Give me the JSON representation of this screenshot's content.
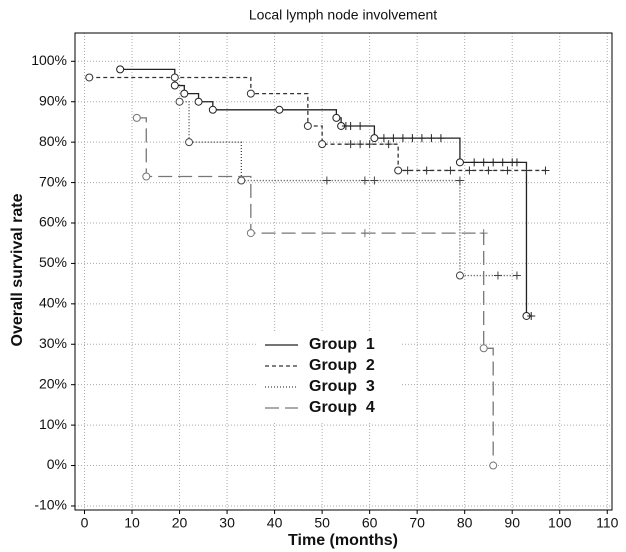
{
  "chart_data": {
    "type": "step",
    "title": "Local lymph node involvement",
    "x_label": "Time (months)",
    "y_label": "Overall survival rate",
    "xlim": [
      -2,
      111
    ],
    "ylim": [
      -11,
      107
    ],
    "xticks": [
      0,
      10,
      20,
      30,
      40,
      50,
      60,
      70,
      80,
      90,
      100,
      110
    ],
    "yticks": [
      {
        "value": -10,
        "label": "-10%"
      },
      {
        "value": 0,
        "label": "0%"
      },
      {
        "value": 10,
        "label": "10%"
      },
      {
        "value": 20,
        "label": "20%"
      },
      {
        "value": 30,
        "label": "30%"
      },
      {
        "value": 40,
        "label": "40%"
      },
      {
        "value": 50,
        "label": "50%"
      },
      {
        "value": 60,
        "label": "60%"
      },
      {
        "value": 70,
        "label": "70%"
      },
      {
        "value": 80,
        "label": "80%"
      },
      {
        "value": 90,
        "label": "90%"
      },
      {
        "value": 100,
        "label": "100%"
      }
    ],
    "grid": true,
    "series": [
      {
        "name": "Group  1",
        "color": "#222222",
        "line_style": "solid",
        "x": [
          7.5,
          19,
          21,
          24,
          27,
          41,
          53,
          54,
          61,
          79,
          93
        ],
        "values": [
          98,
          94,
          92,
          90,
          88,
          88,
          86,
          84,
          81,
          75,
          37
        ],
        "censored_x": [
          55,
          56,
          58,
          63,
          65,
          67,
          69,
          71,
          73,
          75,
          82,
          84,
          86,
          88,
          90,
          91,
          94
        ],
        "censored_values": [
          84,
          84,
          84,
          81,
          81,
          81,
          81,
          81,
          81,
          81,
          75,
          75,
          75,
          75,
          75,
          75,
          37
        ]
      },
      {
        "name": "Group  2",
        "color": "#333333",
        "line_style": "dashed",
        "x": [
          1,
          19,
          35,
          47,
          50,
          66
        ],
        "values": [
          96,
          96,
          92,
          84,
          79.5,
          73
        ],
        "censored_x": [
          56,
          58,
          60,
          64,
          68,
          72,
          77,
          81,
          85,
          89,
          93,
          97
        ],
        "censored_values": [
          79.5,
          79.5,
          79.5,
          79.5,
          73,
          73,
          73,
          73,
          73,
          73,
          73,
          73
        ]
      },
      {
        "name": "Group  3",
        "color": "#444444",
        "line_style": "dotted",
        "x": [
          20,
          22,
          33,
          79
        ],
        "values": [
          90,
          80,
          70.5,
          47
        ],
        "censored_x": [
          51,
          59,
          61,
          79,
          87,
          91
        ],
        "censored_values": [
          70.5,
          70.5,
          70.5,
          70.5,
          47,
          47
        ]
      },
      {
        "name": "Group  4",
        "color": "#777777",
        "line_style": "longdash",
        "x": [
          11,
          13,
          35,
          84,
          86
        ],
        "values": [
          86,
          71.5,
          57.5,
          29,
          0
        ],
        "censored_x": [
          59,
          84
        ],
        "censored_values": [
          57.5,
          57.5
        ]
      }
    ]
  }
}
